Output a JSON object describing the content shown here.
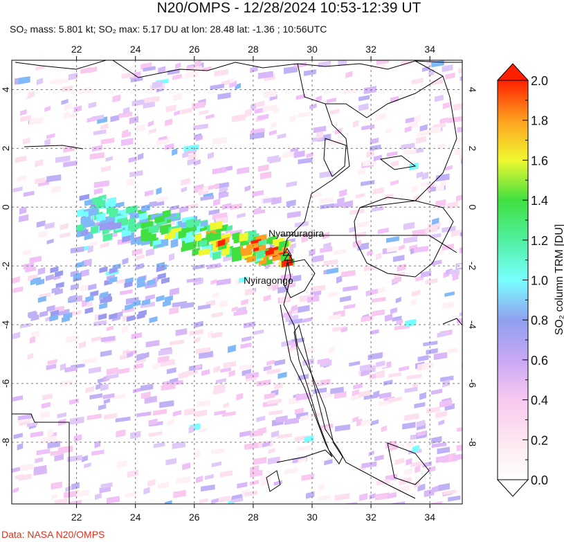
{
  "header": {
    "title": "N20/OMPS - 12/28/2024 10:53-12:39 UT",
    "subtitle": "SO₂ mass: 5.801 kt; SO₂ max: 5.17 DU at lon: 28.48 lat: -1.36 ; 10:56UTC"
  },
  "map": {
    "lon_ticks": [
      "22",
      "24",
      "26",
      "28",
      "30",
      "32",
      "34"
    ],
    "lat_ticks": [
      "4",
      "2",
      "0",
      "-2",
      "-4",
      "-6",
      "-8"
    ],
    "lon_range": [
      19.8,
      35.1
    ],
    "lat_range": [
      -10.1,
      5.0
    ],
    "gridlines": true,
    "volcanoes": [
      {
        "name": "Nyamuragira",
        "lon": 29.2,
        "lat": -1.41
      },
      {
        "name": "Nyiragongo",
        "lon": 29.25,
        "lat": -1.52
      }
    ]
  },
  "colorbar": {
    "label": "SO₂ column TRM [DU]",
    "ticks": [
      "2.0",
      "1.8",
      "1.6",
      "1.4",
      "1.2",
      "1.0",
      "0.8",
      "0.6",
      "0.4",
      "0.2",
      "0.0"
    ],
    "range": [
      0.0,
      2.0
    ],
    "colors": [
      "#ffffff",
      "#fde0f0",
      "#f2b8f0",
      "#c8a8f5",
      "#9a9af0",
      "#80b8f8",
      "#78ffff",
      "#50f0a0",
      "#40e040",
      "#f0f830",
      "#ffa020",
      "#ff2000"
    ]
  },
  "credit": "Data: NASA N20/OMPS"
}
